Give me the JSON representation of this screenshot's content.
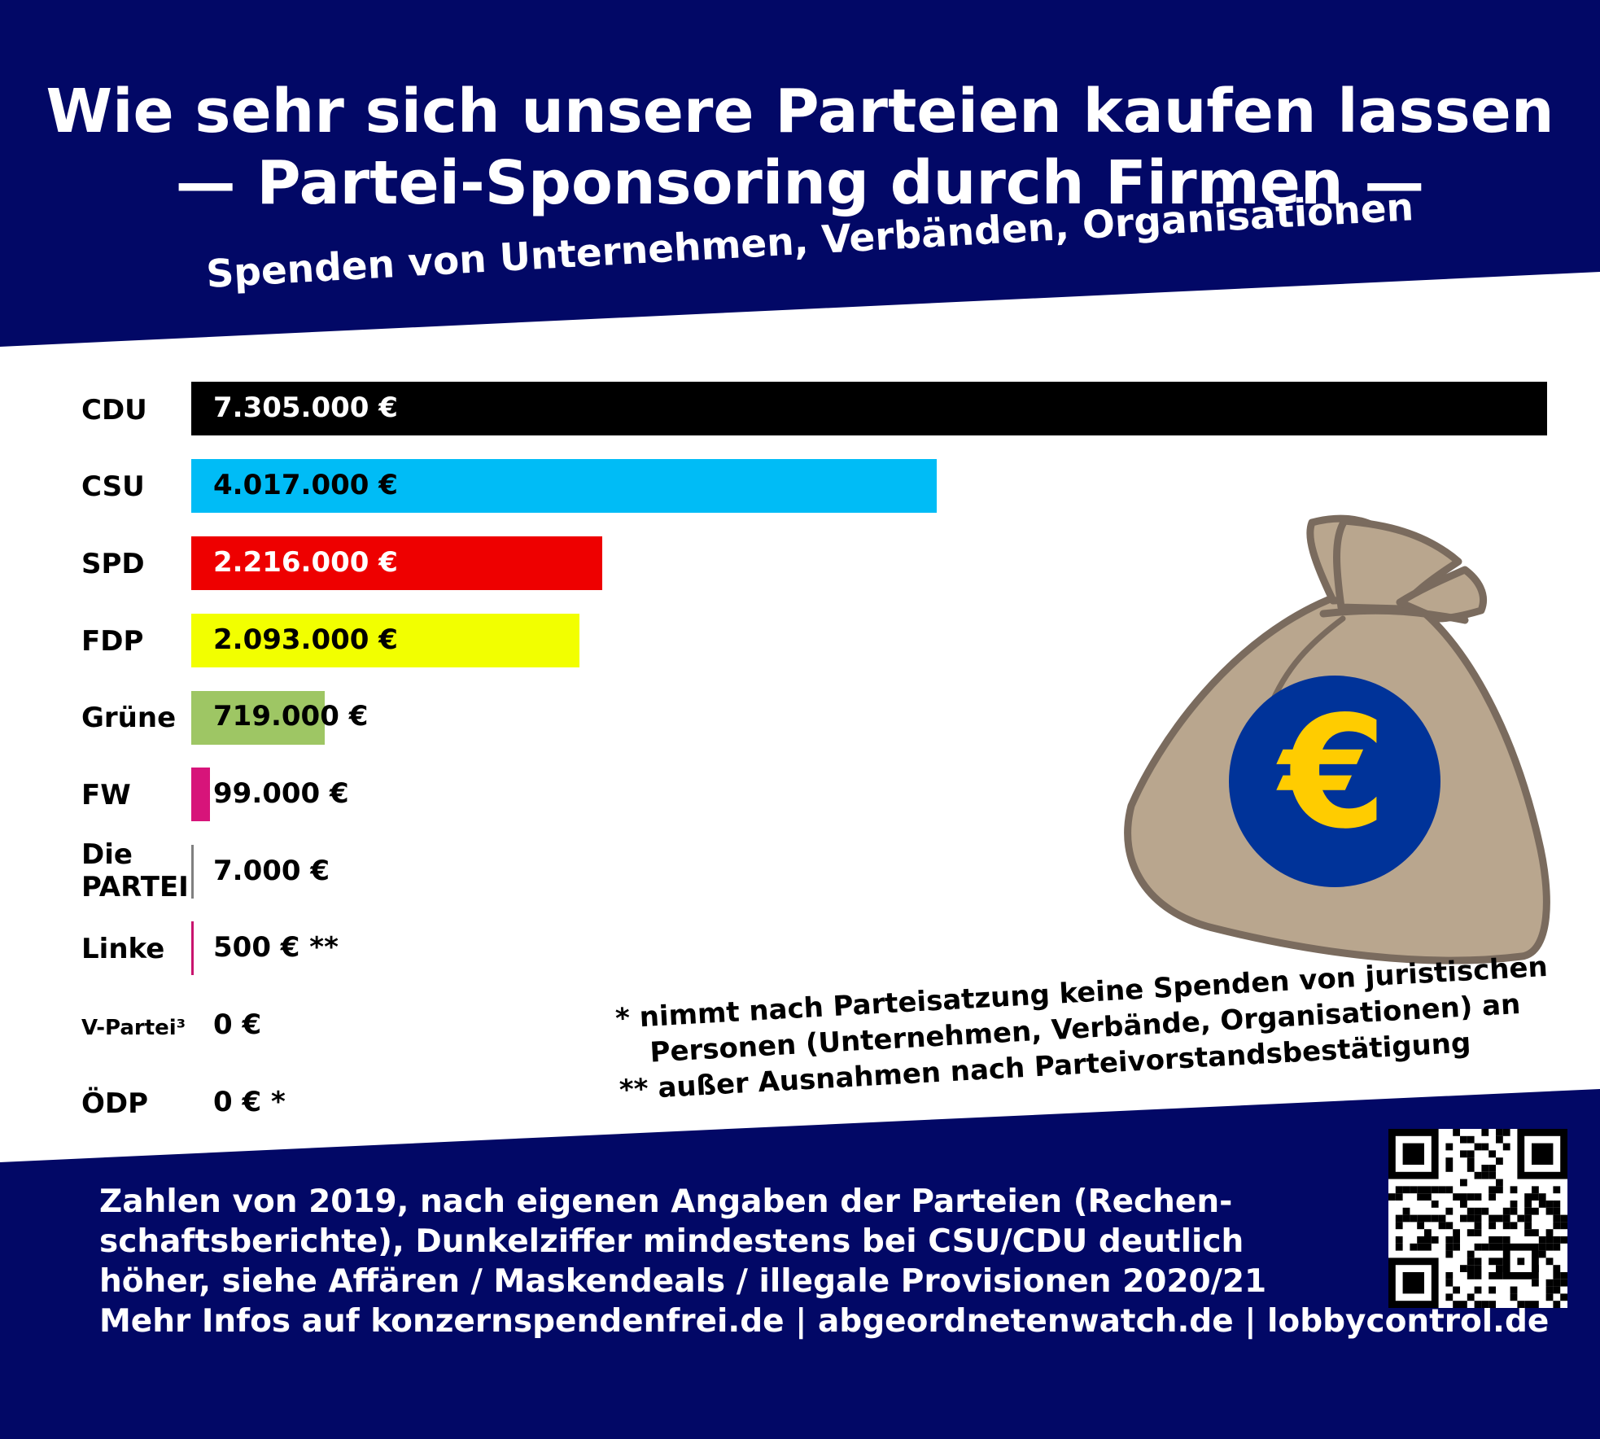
{
  "title": {
    "line1": "Wie sehr sich unsere Parteien kaufen lassen",
    "line2": "— Partei-Sponsoring durch Firmen —"
  },
  "subtitle": "Spenden von Unternehmen, Verbänden, Organisationen",
  "colors": {
    "navy": "#020866",
    "white": "#ffffff",
    "bag": "#b9a68e",
    "bag_outline": "#7a6b5e",
    "euro_circle": "#003399",
    "euro_sign": "#ffcc00"
  },
  "chart_data": {
    "type": "bar",
    "orientation": "horizontal",
    "categories": [
      "CDU",
      "CSU",
      "SPD",
      "FDP",
      "Grüne",
      "FW",
      "Die PARTEI",
      "Linke",
      "V-Partei³",
      "ÖDP"
    ],
    "values": [
      7305000,
      4017000,
      2216000,
      2093000,
      719000,
      99000,
      7000,
      500,
      0,
      0
    ],
    "value_labels": [
      "7.305.000 €",
      "4.017.000 €",
      "2.216.000 €",
      "2.093.000 €",
      "719.000 €",
      "99.000 €",
      "7.000 €",
      "500 € **",
      "0 €",
      "0 € *"
    ],
    "bar_colors": [
      "#000000",
      "#00bcf6",
      "#ee0000",
      "#f2ff00",
      "#9ec664",
      "#d7147a",
      "#808080",
      "#c8146e",
      "#ffffff",
      "#ffffff"
    ],
    "label_colors": [
      "#ffffff",
      "#000000",
      "#ffffff",
      "#000000",
      "#000000",
      "#000000",
      "#000000",
      "#000000",
      "#000000",
      "#000000"
    ],
    "unit": "€",
    "xlim": [
      0,
      7305000
    ]
  },
  "footnotes": [
    "* nimmt nach Parteisatzung keine Spenden von juristischen",
    "Personen (Unternehmen, Verbände, Organisationen) an",
    "** außer Ausnahmen nach Parteivorstandsbestätigung"
  ],
  "source_lines": [
    "Zahlen von 2019, nach eigenen Angaben der Parteien (Rechen-",
    "schaftsberichte), Dunkelziffer mindestens bei CSU/CDU deutlich",
    "höher, siehe Affären / Maskendeals / illegale Provisionen 2020/21",
    "Mehr Infos auf konzernspendenfrei.de | abgeordnetenwatch.de | lobbycontrol.de"
  ],
  "icons": {
    "money_bag": "money-bag-icon",
    "euro": "euro-icon",
    "qr": "qr-code"
  }
}
